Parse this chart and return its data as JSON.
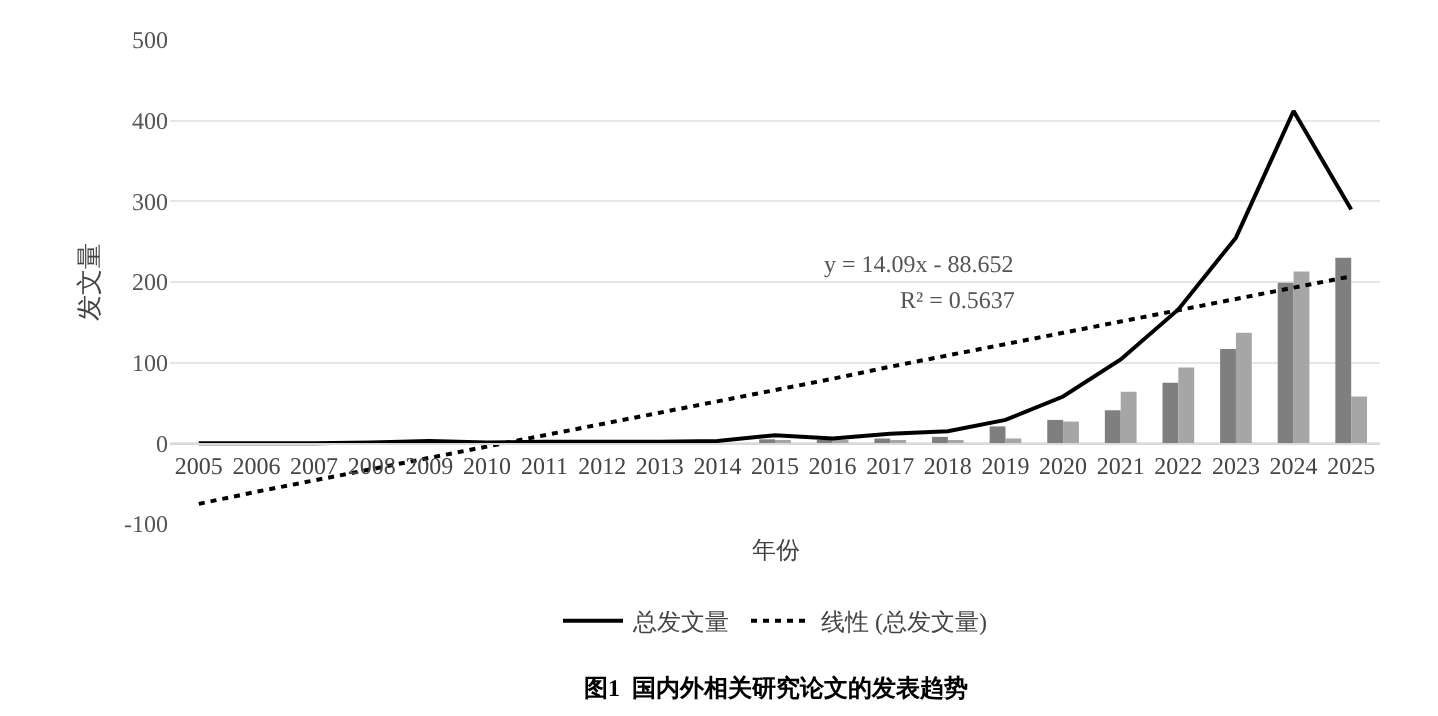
{
  "chart_data": {
    "type": "bar",
    "ylabel": "发文量",
    "xlabel": "年份",
    "categories": [
      "2005",
      "2006",
      "2007",
      "2008",
      "2009",
      "2010",
      "2011",
      "2012",
      "2013",
      "2014",
      "2015",
      "2016",
      "2017",
      "2018",
      "2019",
      "2020",
      "2021",
      "2022",
      "2023",
      "2024",
      "2025"
    ],
    "series": [
      {
        "color": "#7f7f7f",
        "values": [
          0,
          0,
          0,
          1,
          2,
          1,
          1,
          1,
          1,
          2,
          5,
          4,
          6,
          8,
          21,
          29,
          41,
          75,
          117,
          199,
          230
        ]
      },
      {
        "color": "#a6a6a6",
        "values": [
          0,
          0,
          0,
          0,
          null,
          0,
          1,
          1,
          1,
          null,
          4,
          2,
          4,
          4,
          6,
          27,
          64,
          94,
          137,
          213,
          58
        ]
      },
      {
        "type": "line",
        "name": "总发文量",
        "color": "#000000",
        "line_style": "solid",
        "values": [
          0,
          0,
          0,
          1,
          3,
          1,
          2,
          2,
          2,
          3,
          10,
          6,
          12,
          15,
          29,
          58,
          104,
          166,
          255,
          412,
          290
        ]
      },
      {
        "type": "line",
        "name": "线性 (总发文量)",
        "color": "#000000",
        "line_style": "dotted",
        "values": [
          -75,
          -60,
          -46,
          -32,
          -18,
          -4,
          10,
          24,
          38,
          52,
          66,
          80,
          95,
          109,
          123,
          137,
          151,
          165,
          179,
          193,
          207
        ]
      }
    ],
    "ylim": [
      -100,
      500
    ],
    "yticks": [
      -100,
      0,
      100,
      200,
      300,
      400,
      500
    ],
    "grid": "y",
    "legend": "bottom",
    "marker": "none",
    "annotations": [
      "y = 14.09x - 88.652",
      "R² = 0.5637",
      "图1  国内外相关研究论文的发表趋势"
    ]
  }
}
